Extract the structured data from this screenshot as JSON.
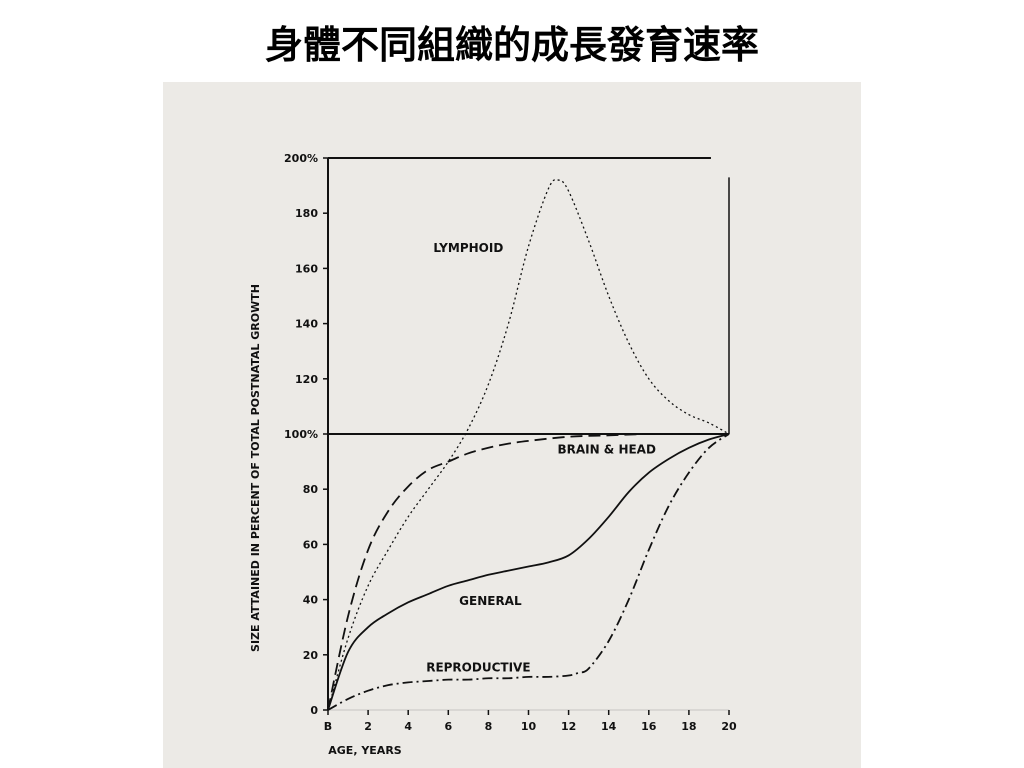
{
  "slide": {
    "title": "身體不同組織的成長發育速率"
  },
  "chart_data": {
    "type": "line",
    "xlabel": "AGE, YEARS",
    "ylabel": "SIZE ATTAINED IN PERCENT OF TOTAL POSTNATAL GROWTH",
    "xlim": [
      0,
      20
    ],
    "ylim": [
      0,
      200
    ],
    "x_ticks": [
      "B",
      "2",
      "4",
      "6",
      "8",
      "10",
      "12",
      "14",
      "16",
      "18",
      "20"
    ],
    "y_ticks": [
      "0",
      "20",
      "40",
      "60",
      "80",
      "100%",
      "120",
      "140",
      "160",
      "180",
      "200%"
    ],
    "grid": false,
    "reference_lines": [
      100,
      200
    ],
    "series": [
      {
        "name": "LYMPHOID",
        "style": "dotted",
        "x": [
          0,
          1,
          2,
          3,
          4,
          5,
          6,
          7,
          8,
          9,
          10,
          11,
          11.5,
          12,
          13,
          14,
          15,
          16,
          17,
          18,
          19,
          20
        ],
        "y": [
          0,
          26,
          45,
          58,
          70,
          80,
          90,
          102,
          118,
          140,
          168,
          189,
          192,
          188,
          170,
          150,
          133,
          120,
          112,
          107,
          104,
          100
        ]
      },
      {
        "name": "BRAIN & HEAD",
        "style": "dashed",
        "x": [
          0,
          1,
          2,
          3,
          4,
          5,
          6,
          7,
          8,
          9,
          10,
          12,
          14,
          16,
          18,
          20
        ],
        "y": [
          0,
          34,
          58,
          72,
          81,
          87,
          90,
          93,
          95,
          96.5,
          97.5,
          99,
          99.5,
          100,
          100,
          100
        ]
      },
      {
        "name": "GENERAL",
        "style": "solid",
        "x": [
          0,
          1,
          2,
          3,
          4,
          5,
          6,
          7,
          8,
          9,
          10,
          11,
          12,
          13,
          14,
          15,
          16,
          17,
          18,
          19,
          20
        ],
        "y": [
          0,
          21,
          30,
          35,
          39,
          42,
          45,
          47,
          49,
          50.5,
          52,
          53.5,
          56,
          62,
          70,
          79,
          86,
          91,
          95,
          98,
          100
        ]
      },
      {
        "name": "REPRODUCTIVE",
        "style": "dash-dot",
        "x": [
          0,
          1,
          2,
          3,
          4,
          5,
          6,
          7,
          8,
          9,
          10,
          11,
          12,
          12.5,
          13,
          14,
          15,
          16,
          17,
          18,
          19,
          20
        ],
        "y": [
          0,
          4,
          7,
          9,
          10,
          10.5,
          11,
          11,
          11.5,
          11.5,
          12,
          12,
          12.5,
          13.5,
          15,
          25,
          40,
          58,
          74,
          86,
          95,
          100
        ]
      }
    ],
    "annotations": [
      {
        "text": "LYMPHOID",
        "x": 7,
        "y": 166
      },
      {
        "text": "BRAIN & HEAD",
        "x": 13.9,
        "y": 93
      },
      {
        "text": "GENERAL",
        "x": 8.1,
        "y": 38
      },
      {
        "text": "REPRODUCTIVE",
        "x": 7.5,
        "y": 14
      }
    ]
  }
}
